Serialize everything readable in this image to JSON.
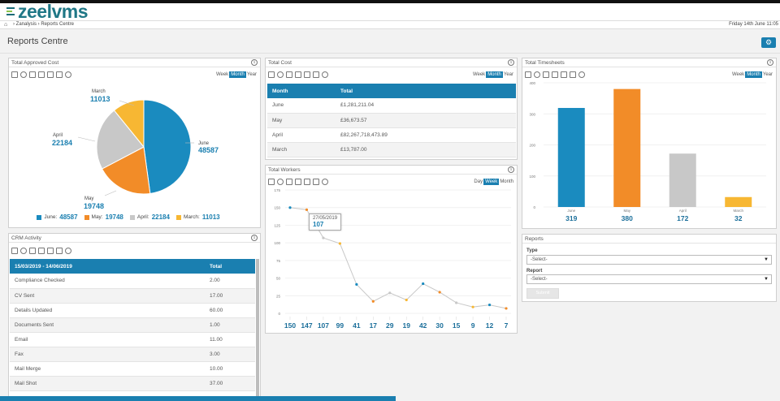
{
  "app": {
    "logo_text": "zeelvms",
    "breadcrumb": "› Zanalysis › Reports Centre",
    "date": "Friday 14th June 11:05",
    "page_title": "Reports Centre",
    "settings_icon": "⚙"
  },
  "info_glyph": "i",
  "colors": {
    "blue": "#1a8bbf",
    "orange": "#f28c28",
    "grey": "#c8c8c8",
    "yellow": "#f7b733",
    "header": "#1a7fb0"
  },
  "approved": {
    "title": "Total Approved Cost",
    "range": [
      "Week",
      "Month",
      "Year"
    ],
    "range_active": "Month",
    "legend": [
      {
        "name": "June:",
        "value": "48587"
      },
      {
        "name": "May:",
        "value": "19748"
      },
      {
        "name": "April:",
        "value": "22184"
      },
      {
        "name": "March:",
        "value": "11013"
      }
    ],
    "slice_labels": [
      {
        "name": "June",
        "value": "48587"
      },
      {
        "name": "May",
        "value": "19748"
      },
      {
        "name": "April",
        "value": "22184"
      },
      {
        "name": "March",
        "value": "11013"
      }
    ]
  },
  "total_cost": {
    "title": "Total Cost",
    "range": [
      "Week",
      "Month",
      "Year"
    ],
    "range_active": "Month",
    "headers": [
      "Month",
      "Total"
    ],
    "rows": [
      {
        "month": "June",
        "total": "£1,281,211.04"
      },
      {
        "month": "May",
        "total": "£36,673.57"
      },
      {
        "month": "April",
        "total": "£82,267,718,473.89"
      },
      {
        "month": "March",
        "total": "£13,787.00"
      }
    ]
  },
  "workers": {
    "title": "Total Workers",
    "range": [
      "Day",
      "Week",
      "Month"
    ],
    "range_active": "Week",
    "yticks": [
      "175",
      "150",
      "125",
      "100",
      "75",
      "50",
      "25",
      "0"
    ],
    "tooltip": {
      "date": "27/05/2019",
      "value": "107"
    },
    "values": [
      "150",
      "147",
      "107",
      "99",
      "41",
      "17",
      "29",
      "19",
      "42",
      "30",
      "15",
      "9",
      "12",
      "7"
    ]
  },
  "timesheets": {
    "title": "Total Timesheets",
    "range": [
      "Week",
      "Month",
      "Year"
    ],
    "range_active": "Month",
    "yticks": [
      "400",
      "300",
      "200",
      "100",
      "0"
    ],
    "bars": [
      {
        "label": "June",
        "value": "319"
      },
      {
        "label": "May",
        "value": "380"
      },
      {
        "label": "April",
        "value": "172"
      },
      {
        "label": "March",
        "value": "32"
      }
    ]
  },
  "crm": {
    "title": "CRM Activity",
    "headers": [
      "15/03/2019 - 14/06/2019",
      "Total"
    ],
    "rows": [
      {
        "name": "Compliance Checked",
        "total": "2.00"
      },
      {
        "name": "CV Sent",
        "total": "17.00"
      },
      {
        "name": "Details Updated",
        "total": "60.00"
      },
      {
        "name": "Documents Sent",
        "total": "1.00"
      },
      {
        "name": "Email",
        "total": "11.00"
      },
      {
        "name": "Fax",
        "total": "3.00"
      },
      {
        "name": "Mail Merge",
        "total": "10.00"
      },
      {
        "name": "Mail Shot",
        "total": "37.00"
      }
    ]
  },
  "reports": {
    "title": "Reports",
    "type_label": "Type",
    "type_placeholder": "-Select-",
    "report_label": "Report",
    "report_placeholder": "-Select-",
    "caret": "▼",
    "submit_label": "Submit"
  },
  "chart_data": [
    {
      "type": "pie",
      "title": "Total Approved Cost",
      "categories": [
        "June",
        "May",
        "April",
        "March"
      ],
      "values": [
        48587,
        19748,
        22184,
        11013
      ],
      "legend": "bottom"
    },
    {
      "type": "line",
      "title": "Total Workers",
      "x": [
        "",
        "",
        "27/05/2019",
        "",
        "",
        "",
        "",
        "",
        "",
        "",
        "",
        "",
        "",
        ""
      ],
      "series": [
        {
          "values": [
            150,
            147,
            107,
            99,
            41,
            17,
            29,
            19,
            42,
            30,
            15,
            9,
            12,
            7
          ]
        }
      ],
      "ylim": [
        0,
        175
      ],
      "grid": true
    },
    {
      "type": "bar",
      "title": "Total Timesheets",
      "categories": [
        "June",
        "May",
        "April",
        "March"
      ],
      "values": [
        319,
        380,
        172,
        32
      ],
      "ylim": [
        0,
        400
      ],
      "grid": true
    }
  ]
}
